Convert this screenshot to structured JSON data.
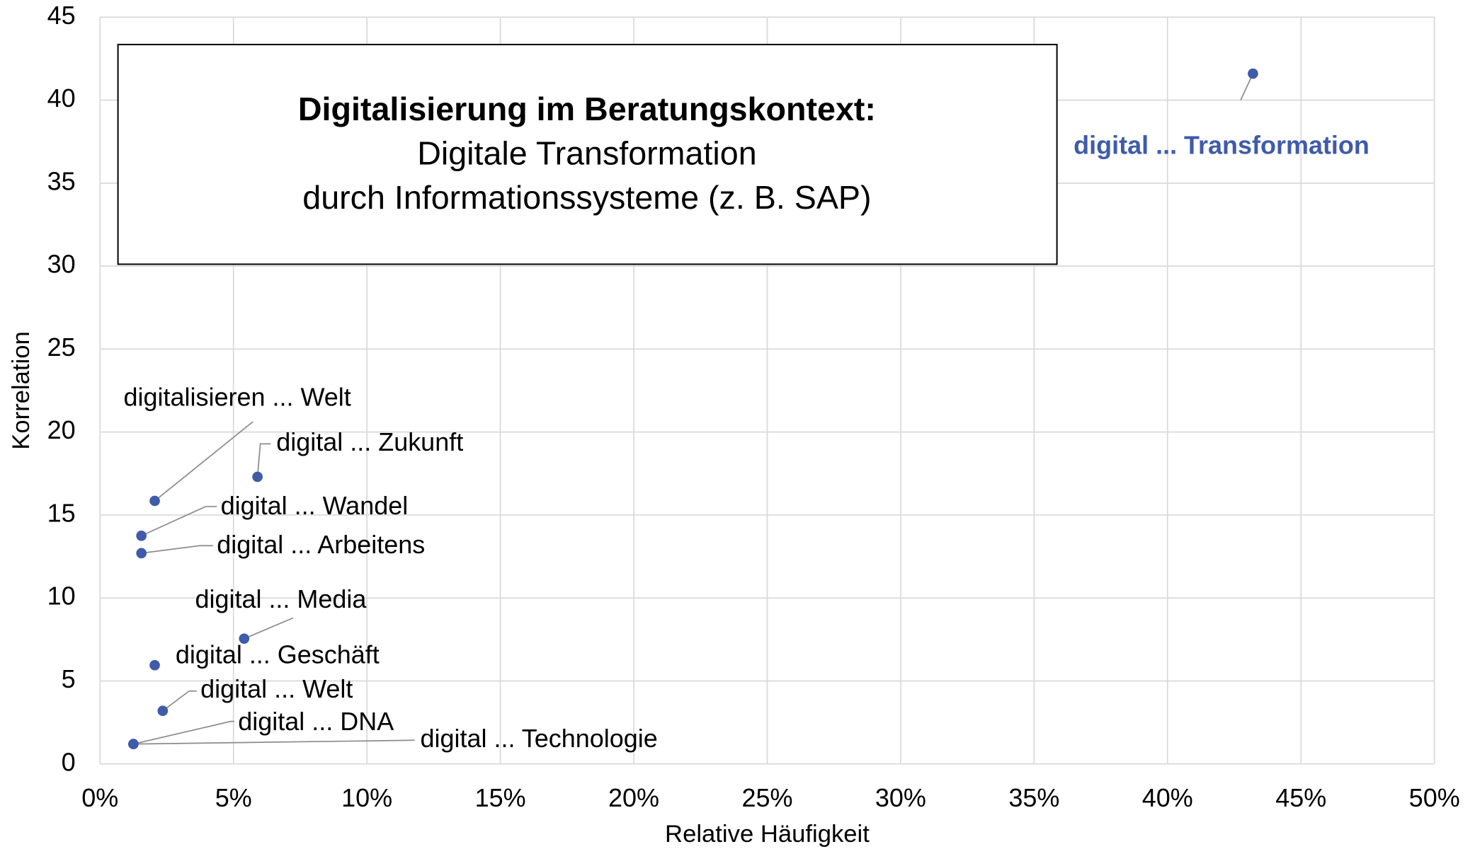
{
  "chart_data": {
    "type": "scatter",
    "title": "Digitalisierung im Beratungskontext:",
    "subtitle": [
      "Digitale Transformation",
      "durch Informationssysteme (z. B. SAP)"
    ],
    "x_label": "Relative Häufigkeit",
    "y_label": "Korrelation",
    "xlim": [
      0,
      50
    ],
    "ylim": [
      0,
      45
    ],
    "xticks": [
      {
        "value": 0,
        "label": "0%"
      },
      {
        "value": 5,
        "label": "5%"
      },
      {
        "value": 10,
        "label": "10%"
      },
      {
        "value": 15,
        "label": "15%"
      },
      {
        "value": 20,
        "label": "20%"
      },
      {
        "value": 25,
        "label": "25%"
      },
      {
        "value": 30,
        "label": "30%"
      },
      {
        "value": 35,
        "label": "35%"
      },
      {
        "value": 40,
        "label": "40%"
      },
      {
        "value": 45,
        "label": "45%"
      },
      {
        "value": 50,
        "label": "50%"
      }
    ],
    "yticks": [
      0,
      5,
      10,
      15,
      20,
      25,
      30,
      35,
      40,
      45
    ],
    "grid": true,
    "series": [
      {
        "color": "#3f5ba9",
        "labels": [
          "digital ... Transformation",
          "digitalisieren ... Welt",
          "digital ... Zukunft",
          "digital ... Wandel",
          "digital ... Arbeitens",
          "digital ... Media",
          "digital ... Geschäft",
          "digital ... Welt",
          "digital ... DNA",
          "digital ... Technologie"
        ],
        "x": [
          43.2,
          2.05,
          5.9,
          1.55,
          1.55,
          5.4,
          2.05,
          2.35,
          1.25,
          1.25
        ],
        "values": [
          41.6,
          15.85,
          17.3,
          13.75,
          12.7,
          7.55,
          5.95,
          3.2,
          1.2,
          1.2
        ]
      }
    ]
  }
}
